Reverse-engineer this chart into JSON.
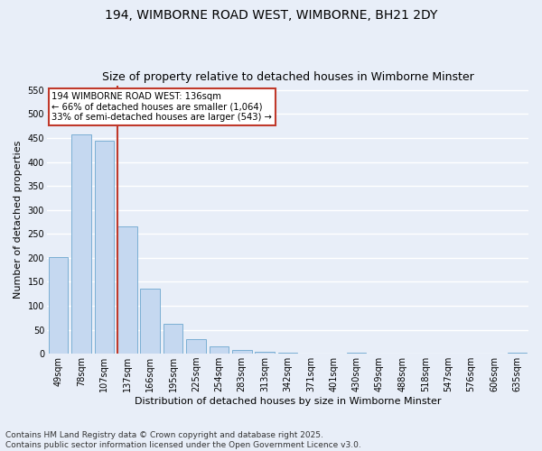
{
  "title1": "194, WIMBORNE ROAD WEST, WIMBORNE, BH21 2DY",
  "title2": "Size of property relative to detached houses in Wimborne Minster",
  "xlabel": "Distribution of detached houses by size in Wimborne Minster",
  "ylabel": "Number of detached properties",
  "categories": [
    "49sqm",
    "78sqm",
    "107sqm",
    "137sqm",
    "166sqm",
    "195sqm",
    "225sqm",
    "254sqm",
    "283sqm",
    "313sqm",
    "342sqm",
    "371sqm",
    "401sqm",
    "430sqm",
    "459sqm",
    "488sqm",
    "518sqm",
    "547sqm",
    "576sqm",
    "606sqm",
    "635sqm"
  ],
  "values": [
    201,
    457,
    444,
    265,
    135,
    62,
    31,
    15,
    8,
    4,
    3,
    0,
    0,
    3,
    0,
    0,
    0,
    0,
    0,
    0,
    3
  ],
  "bar_color": "#c5d8f0",
  "bar_edge_color": "#7bafd4",
  "vline_color": "#c0392b",
  "annotation_text": "194 WIMBORNE ROAD WEST: 136sqm\n← 66% of detached houses are smaller (1,064)\n33% of semi-detached houses are larger (543) →",
  "annotation_box_color": "white",
  "annotation_box_edge_color": "#c0392b",
  "ylim": [
    0,
    560
  ],
  "yticks": [
    0,
    50,
    100,
    150,
    200,
    250,
    300,
    350,
    400,
    450,
    500,
    550
  ],
  "background_color": "#e8eef8",
  "grid_color": "white",
  "footer": "Contains HM Land Registry data © Crown copyright and database right 2025.\nContains public sector information licensed under the Open Government Licence v3.0.",
  "title_fontsize": 10,
  "subtitle_fontsize": 9,
  "tick_fontsize": 7,
  "ylabel_fontsize": 8,
  "xlabel_fontsize": 8,
  "footer_fontsize": 6.5
}
